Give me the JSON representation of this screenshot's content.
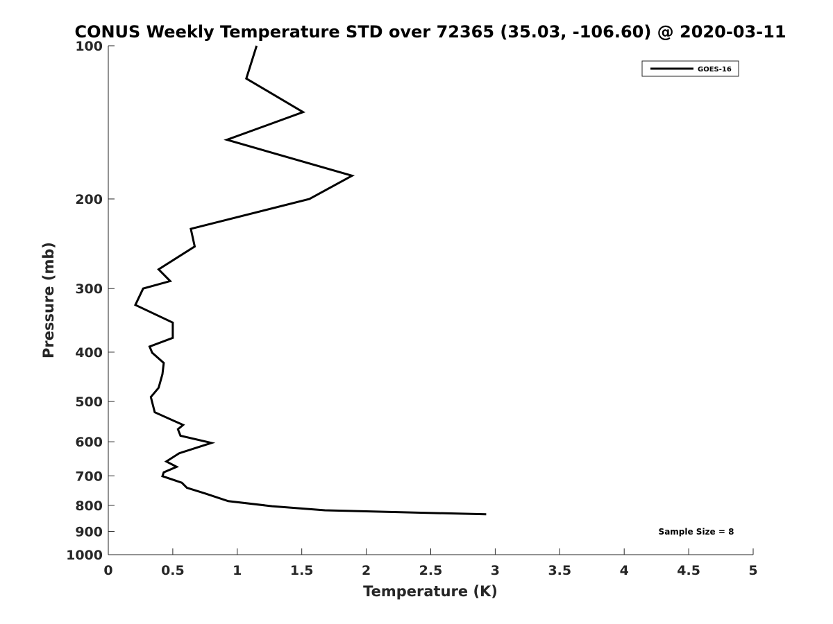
{
  "chart_data": {
    "type": "line",
    "title": "CONUS Weekly Temperature STD over 72365 (35.03, -106.60) @ 2020-03-11",
    "xlabel": "Temperature (K)",
    "ylabel": "Pressure (mb)",
    "xlim": [
      0,
      5
    ],
    "ylim": [
      1000,
      100
    ],
    "yscale": "log",
    "y_reversed": true,
    "grid": false,
    "legend_position": "top-right",
    "x_ticks": [
      0,
      0.5,
      1,
      1.5,
      2,
      2.5,
      3,
      3.5,
      4,
      4.5,
      5
    ],
    "x_tick_labels": [
      "0",
      "0.5",
      "1",
      "1.5",
      "2",
      "2.5",
      "3",
      "3.5",
      "4",
      "4.5",
      "5"
    ],
    "y_ticks": [
      100,
      200,
      300,
      400,
      500,
      600,
      700,
      800,
      900,
      1000
    ],
    "y_tick_labels": [
      "100",
      "200",
      "300",
      "400",
      "500",
      "600",
      "700",
      "800",
      "900",
      "1000"
    ],
    "series": [
      {
        "name": "GOES-16",
        "color": "#000000",
        "x": [
          1.15,
          1.07,
          1.51,
          0.92,
          1.89,
          1.56,
          0.64,
          0.67,
          0.39,
          0.48,
          0.27,
          0.21,
          0.5,
          0.5,
          0.32,
          0.34,
          0.43,
          0.42,
          0.39,
          0.33,
          0.36,
          0.58,
          0.54,
          0.56,
          0.8,
          0.55,
          0.45,
          0.53,
          0.43,
          0.42,
          0.57,
          0.61,
          0.75,
          0.93,
          1.27,
          1.68,
          2.93
        ],
        "y": [
          100,
          116,
          135,
          153,
          180,
          200,
          229,
          248,
          275,
          290,
          300,
          323,
          350,
          375,
          390,
          401,
          420,
          442,
          470,
          490,
          525,
          556,
          567,
          584,
          603,
          632,
          656,
          672,
          689,
          701,
          722,
          739,
          758,
          785,
          803,
          818,
          833
        ]
      }
    ],
    "annotations": [
      "Sample Size = 8"
    ]
  }
}
